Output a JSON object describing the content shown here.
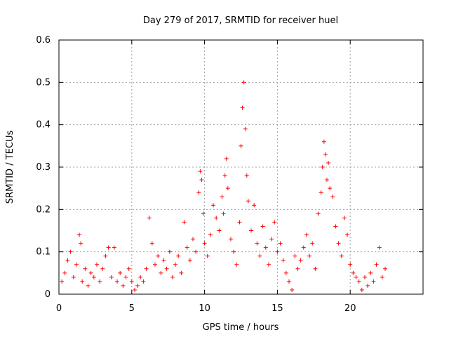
{
  "chart_data": {
    "type": "scatter",
    "title": "Day 279 of 2017, SRMTID for receiver huel",
    "xlabel": "GPS time / hours",
    "ylabel": "SRMTID / TECUs",
    "xlim": [
      0,
      25
    ],
    "ylim": [
      0,
      0.6
    ],
    "xticks": [
      0,
      5,
      10,
      15,
      20
    ],
    "xtick_labels": [
      "0",
      "5",
      "10",
      "15",
      "20"
    ],
    "yticks": [
      0,
      0.1,
      0.2,
      0.3,
      0.4,
      0.5,
      0.6
    ],
    "ytick_labels": [
      "0",
      "0.1",
      "0.2",
      "0.3",
      "0.4",
      "0.5",
      "0.6"
    ],
    "grid": true,
    "marker": "plus",
    "color": "#ff0000",
    "series": [
      {
        "name": "SRMTID",
        "points": [
          [
            0.2,
            0.03
          ],
          [
            0.4,
            0.05
          ],
          [
            0.6,
            0.08
          ],
          [
            0.8,
            0.1
          ],
          [
            1.0,
            0.04
          ],
          [
            1.2,
            0.07
          ],
          [
            1.4,
            0.14
          ],
          [
            1.5,
            0.12
          ],
          [
            1.6,
            0.03
          ],
          [
            1.8,
            0.06
          ],
          [
            2.0,
            0.02
          ],
          [
            2.2,
            0.05
          ],
          [
            2.4,
            0.04
          ],
          [
            2.6,
            0.07
          ],
          [
            2.8,
            0.03
          ],
          [
            3.0,
            0.06
          ],
          [
            3.2,
            0.09
          ],
          [
            3.4,
            0.11
          ],
          [
            3.6,
            0.04
          ],
          [
            3.8,
            0.11
          ],
          [
            4.0,
            0.03
          ],
          [
            4.2,
            0.05
          ],
          [
            4.4,
            0.02
          ],
          [
            4.6,
            0.04
          ],
          [
            4.8,
            0.06
          ],
          [
            5.0,
            0.03
          ],
          [
            5.2,
            0.01
          ],
          [
            5.4,
            0.02
          ],
          [
            5.6,
            0.04
          ],
          [
            5.8,
            0.03
          ],
          [
            6.0,
            0.06
          ],
          [
            6.2,
            0.18
          ],
          [
            6.4,
            0.12
          ],
          [
            6.6,
            0.07
          ],
          [
            6.8,
            0.09
          ],
          [
            7.0,
            0.05
          ],
          [
            7.2,
            0.08
          ],
          [
            7.4,
            0.06
          ],
          [
            7.6,
            0.1
          ],
          [
            7.8,
            0.04
          ],
          [
            8.0,
            0.07
          ],
          [
            8.2,
            0.09
          ],
          [
            8.4,
            0.05
          ],
          [
            8.6,
            0.17
          ],
          [
            8.8,
            0.11
          ],
          [
            9.0,
            0.08
          ],
          [
            9.2,
            0.13
          ],
          [
            9.4,
            0.1
          ],
          [
            9.6,
            0.24
          ],
          [
            9.7,
            0.29
          ],
          [
            9.8,
            0.27
          ],
          [
            9.9,
            0.19
          ],
          [
            10.0,
            0.12
          ],
          [
            10.2,
            0.09
          ],
          [
            10.4,
            0.14
          ],
          [
            10.6,
            0.21
          ],
          [
            10.8,
            0.18
          ],
          [
            11.0,
            0.15
          ],
          [
            11.2,
            0.23
          ],
          [
            11.3,
            0.19
          ],
          [
            11.4,
            0.28
          ],
          [
            11.5,
            0.32
          ],
          [
            11.6,
            0.25
          ],
          [
            11.8,
            0.13
          ],
          [
            12.0,
            0.1
          ],
          [
            12.2,
            0.07
          ],
          [
            12.4,
            0.17
          ],
          [
            12.5,
            0.35
          ],
          [
            12.6,
            0.44
          ],
          [
            12.7,
            0.5
          ],
          [
            12.8,
            0.39
          ],
          [
            12.9,
            0.28
          ],
          [
            13.0,
            0.22
          ],
          [
            13.2,
            0.15
          ],
          [
            13.4,
            0.21
          ],
          [
            13.6,
            0.12
          ],
          [
            13.8,
            0.09
          ],
          [
            14.0,
            0.16
          ],
          [
            14.2,
            0.11
          ],
          [
            14.4,
            0.07
          ],
          [
            14.6,
            0.13
          ],
          [
            14.8,
            0.17
          ],
          [
            15.0,
            0.1
          ],
          [
            15.2,
            0.12
          ],
          [
            15.4,
            0.08
          ],
          [
            15.6,
            0.05
          ],
          [
            15.8,
            0.03
          ],
          [
            16.0,
            0.01
          ],
          [
            16.2,
            0.09
          ],
          [
            16.4,
            0.06
          ],
          [
            16.6,
            0.08
          ],
          [
            16.8,
            0.11
          ],
          [
            17.0,
            0.14
          ],
          [
            17.2,
            0.09
          ],
          [
            17.4,
            0.12
          ],
          [
            17.6,
            0.06
          ],
          [
            17.8,
            0.19
          ],
          [
            18.0,
            0.24
          ],
          [
            18.1,
            0.3
          ],
          [
            18.2,
            0.36
          ],
          [
            18.3,
            0.33
          ],
          [
            18.4,
            0.27
          ],
          [
            18.5,
            0.31
          ],
          [
            18.6,
            0.25
          ],
          [
            18.8,
            0.23
          ],
          [
            19.0,
            0.16
          ],
          [
            19.2,
            0.12
          ],
          [
            19.4,
            0.09
          ],
          [
            19.6,
            0.18
          ],
          [
            19.8,
            0.14
          ],
          [
            20.0,
            0.07
          ],
          [
            20.2,
            0.05
          ],
          [
            20.4,
            0.04
          ],
          [
            20.6,
            0.03
          ],
          [
            20.8,
            0.01
          ],
          [
            21.0,
            0.04
          ],
          [
            21.2,
            0.02
          ],
          [
            21.4,
            0.05
          ],
          [
            21.6,
            0.03
          ],
          [
            21.8,
            0.07
          ],
          [
            22.0,
            0.11
          ],
          [
            22.2,
            0.04
          ],
          [
            22.4,
            0.06
          ]
        ]
      }
    ]
  }
}
